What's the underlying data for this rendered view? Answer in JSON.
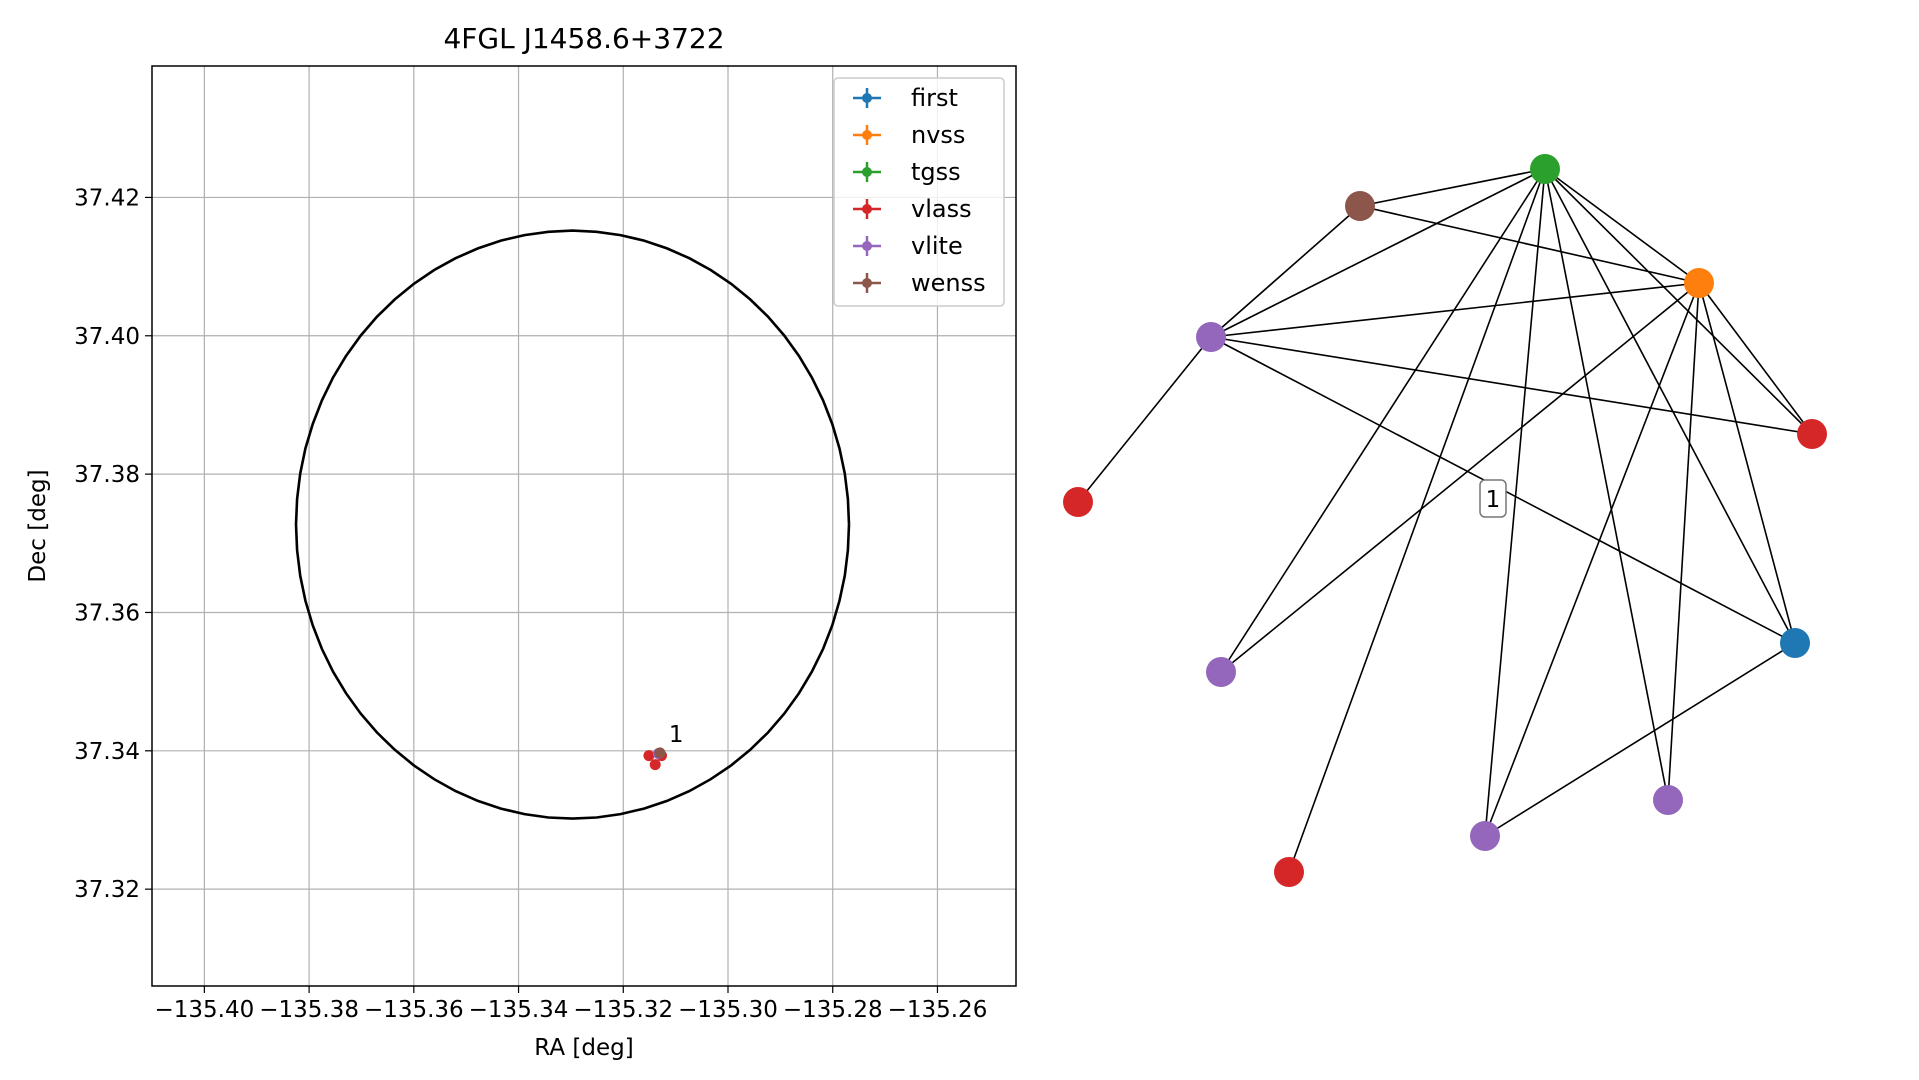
{
  "chart_data": [
    {
      "type": "scatter",
      "title": "4FGL J1458.6+3722",
      "xlabel": "RA [deg]",
      "ylabel": "Dec [deg]",
      "xlim": [
        -135.41,
        -135.245
      ],
      "ylim": [
        37.306,
        37.439
      ],
      "xticks": [
        -135.4,
        -135.38,
        -135.36,
        -135.34,
        -135.32,
        -135.3,
        -135.28,
        -135.26
      ],
      "xtick_labels": [
        "−135.40",
        "−135.38",
        "−135.36",
        "−135.34",
        "−135.32",
        "−135.30",
        "−135.28",
        "−135.26"
      ],
      "yticks": [
        37.32,
        37.34,
        37.36,
        37.38,
        37.4,
        37.42
      ],
      "ytick_labels": [
        "37.32",
        "37.34",
        "37.36",
        "37.38",
        "37.40",
        "37.42"
      ],
      "grid": true,
      "legend_position": "top-right",
      "series": [
        {
          "name": "first",
          "color": "#1f77b4",
          "points": []
        },
        {
          "name": "nvss",
          "color": "#ff7f0e",
          "points": []
        },
        {
          "name": "tgss",
          "color": "#2ca02c",
          "points": []
        },
        {
          "name": "vlass",
          "color": "#d62728",
          "points": [
            [
              -135.3151,
              37.3393
            ],
            [
              -135.3139,
              37.338
            ],
            [
              -135.3127,
              37.3393
            ]
          ]
        },
        {
          "name": "vlite",
          "color": "#9467bd",
          "points": [
            [
              -135.3133,
              37.3396
            ]
          ]
        },
        {
          "name": "wenss",
          "color": "#8c564b",
          "points": [
            [
              -135.313,
              37.3397
            ]
          ]
        }
      ],
      "ellipse": {
        "center": [
          -135.3297,
          37.3727
        ],
        "radius_ra": 0.0528,
        "radius_dec": 0.0425,
        "color": "#000000"
      },
      "annotations": [
        {
          "text": "1",
          "x": -135.3113,
          "y": 37.3413
        }
      ]
    },
    {
      "type": "network",
      "nodes": [
        {
          "id": "tgss0",
          "color": "#2ca02c"
        },
        {
          "id": "wenss0",
          "color": "#8c564b"
        },
        {
          "id": "nvss0",
          "color": "#ff7f0e"
        },
        {
          "id": "vlite0",
          "color": "#9467bd"
        },
        {
          "id": "vlass0",
          "color": "#d62728"
        },
        {
          "id": "vlass1",
          "color": "#d62728"
        },
        {
          "id": "first0",
          "color": "#1f77b4"
        },
        {
          "id": "vlite1",
          "color": "#9467bd"
        },
        {
          "id": "vlite2",
          "color": "#9467bd"
        },
        {
          "id": "vlite3",
          "color": "#9467bd"
        },
        {
          "id": "vlass2",
          "color": "#d62728"
        }
      ],
      "edges": [
        [
          "tgss0",
          "wenss0"
        ],
        [
          "tgss0",
          "nvss0"
        ],
        [
          "tgss0",
          "vlite0"
        ],
        [
          "tgss0",
          "vlass0"
        ],
        [
          "tgss0",
          "first0"
        ],
        [
          "tgss0",
          "vlite1"
        ],
        [
          "tgss0",
          "vlite2"
        ],
        [
          "tgss0",
          "vlite3"
        ],
        [
          "tgss0",
          "vlass2"
        ],
        [
          "wenss0",
          "vlite0"
        ],
        [
          "wenss0",
          "nvss0"
        ],
        [
          "nvss0",
          "vlite0"
        ],
        [
          "nvss0",
          "vlass0"
        ],
        [
          "nvss0",
          "first0"
        ],
        [
          "nvss0",
          "vlite1"
        ],
        [
          "nvss0",
          "vlite2"
        ],
        [
          "nvss0",
          "vlite3"
        ],
        [
          "vlite0",
          "vlass0"
        ],
        [
          "vlite0",
          "first0"
        ],
        [
          "vlite0",
          "vlass1"
        ],
        [
          "first0",
          "vlite3"
        ]
      ],
      "labels": [
        {
          "text": "1"
        }
      ]
    }
  ]
}
